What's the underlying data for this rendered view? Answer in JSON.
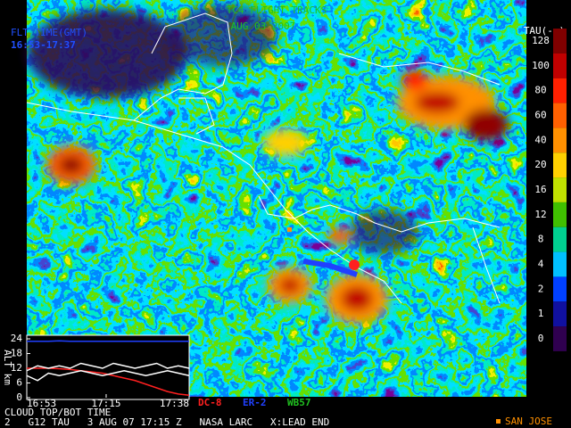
{
  "header": {
    "title": "TC4 FLIGHT TRACKS",
    "date": "AUG 03 2007",
    "flight_time_label": "FLT TIME(GMT)",
    "flight_time": "16:53-17:37"
  },
  "colorbar": {
    "label": "TAU(--)",
    "ticks": [
      128,
      100,
      80,
      60,
      40,
      20,
      16,
      12,
      8,
      4,
      2,
      1,
      0
    ],
    "colors": [
      "#800000",
      "#c00000",
      "#ff2000",
      "#ff6000",
      "#ff9000",
      "#ffd000",
      "#c0e000",
      "#40c000",
      "#00d090",
      "#00c0ff",
      "#0040ff",
      "#1010a0",
      "#300050"
    ]
  },
  "chart_data": {
    "type": "line",
    "ylabel": "ALT km",
    "x": [
      0,
      3,
      6,
      9,
      12,
      15,
      18,
      21,
      24,
      27,
      30,
      33,
      36,
      39,
      42,
      45
    ],
    "xlim": [
      0,
      45
    ],
    "xticks": [
      {
        "value": 0,
        "label": "16:53"
      },
      {
        "value": 22,
        "label": "17:15"
      },
      {
        "value": 45,
        "label": "17:38"
      }
    ],
    "ylim": [
      0,
      24
    ],
    "yticks": [
      24,
      18,
      12,
      6,
      0
    ],
    "series": [
      {
        "color": "#2040ff",
        "values": [
          23,
          23,
          23,
          23.2,
          23,
          23,
          23,
          23,
          23,
          23,
          23,
          23,
          23,
          23,
          23,
          23
        ]
      },
      {
        "color": "#ff2020",
        "values": [
          12,
          12,
          12,
          11.8,
          11.5,
          11,
          10.5,
          10,
          9,
          8,
          7,
          5.5,
          4,
          2.5,
          1.5,
          1
        ]
      },
      {
        "color": "#ffffff",
        "values": [
          11,
          13,
          12,
          13,
          12,
          14,
          13,
          12,
          14,
          13,
          12,
          13,
          14,
          12,
          13,
          12
        ]
      },
      {
        "color": "#ffffff",
        "values": [
          9,
          7,
          10,
          9,
          10,
          11,
          10,
          9,
          10,
          11,
          10,
          9,
          10,
          11,
          10,
          9
        ]
      }
    ]
  },
  "aircraft": [
    {
      "name": "DC-8",
      "color": "#ff2020"
    },
    {
      "name": "ER-2",
      "color": "#2040ff"
    },
    {
      "name": "WB57",
      "color": "#20c020"
    }
  ],
  "footer": {
    "caption": "CLOUD TOP/BOT TIME",
    "status": "2   G12 TAU   3 AUG 07 17:15 Z   NASA LARC   X:LEAD END",
    "site": "SAN JOSE"
  }
}
